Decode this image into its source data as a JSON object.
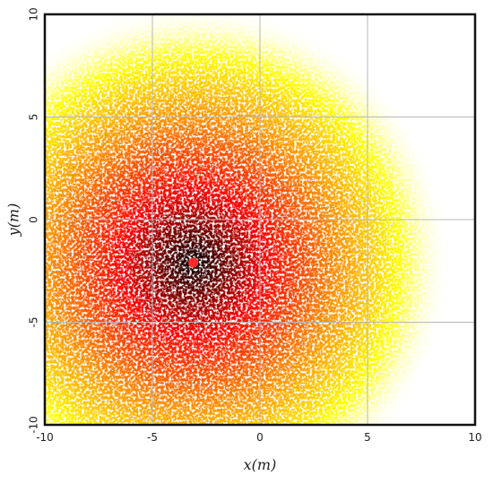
{
  "chart_data": {
    "type": "scatter",
    "subtype": "density-heatmap",
    "xlabel": "x(m)",
    "ylabel": "y(m)",
    "xlim": [
      -10,
      10
    ],
    "ylim": [
      -10,
      10
    ],
    "xticks": [
      -10,
      -5,
      0,
      5,
      10
    ],
    "yticks": [
      -10,
      -5,
      0,
      5,
      10
    ],
    "grid": true,
    "colormap": [
      "#000000",
      "#ff0000",
      "#ff8c00",
      "#ffff00",
      "#ffffff"
    ],
    "density_center": {
      "x": -3.1,
      "y": -2.1
    },
    "density_radius": 12,
    "marker": {
      "x": -3.1,
      "y": -2.1,
      "color": "#ff2a2a"
    }
  }
}
